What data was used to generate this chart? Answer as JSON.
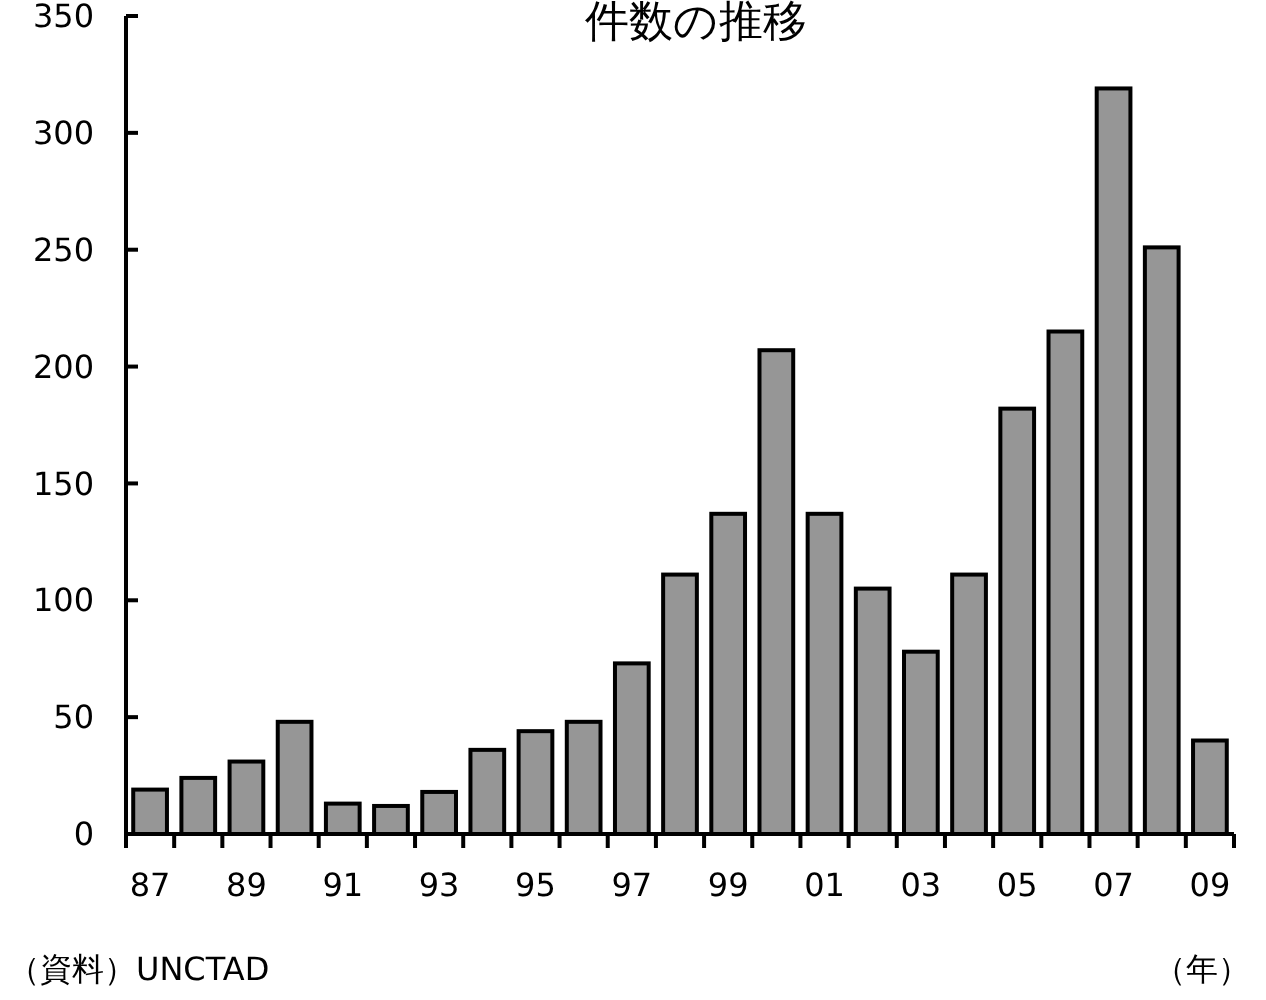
{
  "chart_data": {
    "type": "bar",
    "title": "件数の推移",
    "xlabel": "（年）",
    "annotations": [
      "（資料）UNCTAD"
    ],
    "categories": [
      "87",
      null,
      "89",
      null,
      "91",
      null,
      "93",
      null,
      "95",
      null,
      "97",
      null,
      "99",
      null,
      "01",
      null,
      "03",
      null,
      "05",
      null,
      "07",
      null,
      "09"
    ],
    "values": [
      19,
      24,
      31,
      48,
      13,
      12,
      18,
      36,
      44,
      48,
      73,
      111,
      137,
      207,
      137,
      105,
      78,
      111,
      182,
      215,
      319,
      251,
      40
    ],
    "color": "#969696",
    "ylim": [
      0,
      350
    ],
    "yticks": [
      0,
      50,
      100,
      150,
      200,
      250,
      300,
      350
    ],
    "grid": false
  }
}
